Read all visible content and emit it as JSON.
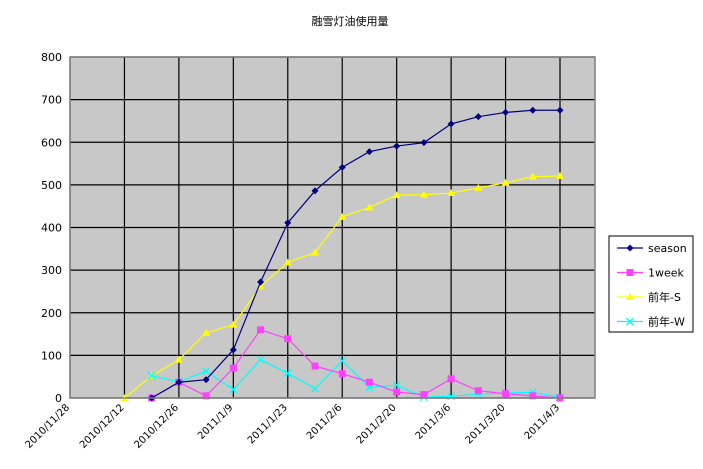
{
  "chart_data": {
    "type": "line",
    "title": "融雪灯油使用量",
    "xlabel": "",
    "ylabel": "",
    "ylim": [
      0,
      800
    ],
    "yticks": [
      0,
      100,
      200,
      300,
      400,
      500,
      600,
      700,
      800
    ],
    "xlim": [
      "2010/11/28",
      "2011/4/12"
    ],
    "xtick_labels": [
      "2010/11/28",
      "2010/12/12",
      "2010/12/26",
      "2011/1/9",
      "2011/1/23",
      "2011/2/6",
      "2011/2/20",
      "2011/3/6",
      "2011/3/20",
      "2011/4/3"
    ],
    "grid": true,
    "legend": "right",
    "x": [
      "2010/12/12",
      "2010/12/19",
      "2010/12/26",
      "2011/1/2",
      "2011/1/9",
      "2011/1/16",
      "2011/1/23",
      "2011/1/30",
      "2011/2/6",
      "2011/2/13",
      "2011/2/20",
      "2011/2/27",
      "2011/3/6",
      "2011/3/13",
      "2011/3/20",
      "2011/3/27",
      "2011/4/3"
    ],
    "series": [
      {
        "name": "season",
        "color": "#000080",
        "marker": "diamond",
        "values": [
          null,
          0,
          37,
          43,
          113,
          272,
          411,
          486,
          541,
          578,
          591,
          599,
          643,
          660,
          670,
          675,
          675
        ]
      },
      {
        "name": "1week",
        "color": "#ff40ff",
        "marker": "square",
        "values": [
          null,
          0,
          37,
          5,
          70,
          160,
          139,
          75,
          57,
          37,
          14,
          8,
          45,
          17,
          10,
          5,
          0
        ]
      },
      {
        "name": "前年-S",
        "color": "#ffff00",
        "marker": "triangle",
        "values": [
          0,
          52,
          90,
          153,
          172,
          262,
          318,
          341,
          425,
          447,
          476,
          477,
          481,
          493,
          505,
          519,
          521
        ]
      },
      {
        "name": "前年-W",
        "color": "#00ffff",
        "marker": "x",
        "values": [
          null,
          52,
          38,
          63,
          20,
          90,
          58,
          22,
          87,
          25,
          30,
          2,
          4,
          9,
          12,
          13,
          2
        ]
      }
    ]
  }
}
